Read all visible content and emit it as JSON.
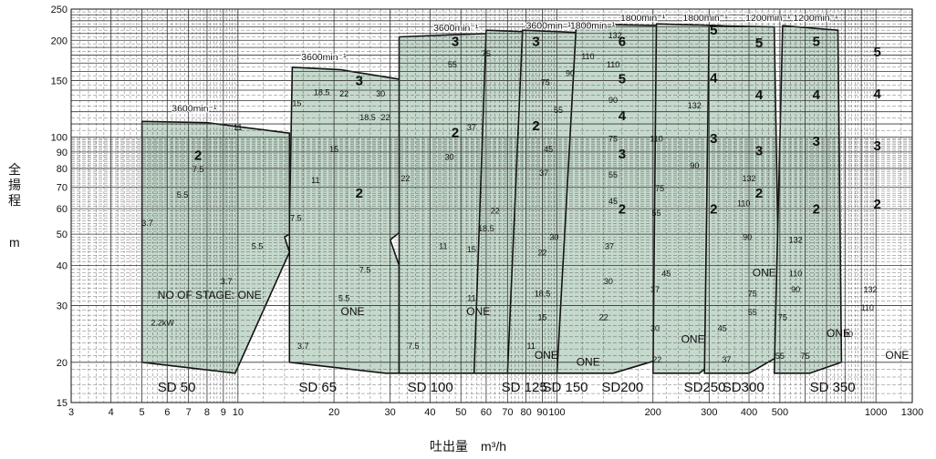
{
  "chart_data": {
    "type": "area",
    "title": "",
    "xlabel": "吐出量　m³/h",
    "ylabel": "全揚程",
    "yunit": "m",
    "x_scale": "log",
    "y_scale": "log",
    "xlim": [
      3,
      1300
    ],
    "ylim": [
      15,
      250
    ],
    "grid": true,
    "x_tick_labels": [
      {
        "v": 3,
        "t": "3"
      },
      {
        "v": 4,
        "t": "4"
      },
      {
        "v": 5,
        "t": "5"
      },
      {
        "v": 6,
        "t": "6"
      },
      {
        "v": 7,
        "t": "7"
      },
      {
        "v": 8,
        "t": "8"
      },
      {
        "v": 9,
        "t": "9"
      },
      {
        "v": 10,
        "t": "10"
      },
      {
        "v": 20,
        "t": "20"
      },
      {
        "v": 30,
        "t": "30"
      },
      {
        "v": 40,
        "t": "40"
      },
      {
        "v": 50,
        "t": "50"
      },
      {
        "v": 60,
        "t": "60"
      },
      {
        "v": 70,
        "t": "70"
      },
      {
        "v": 80,
        "t": "80"
      },
      {
        "v": 90,
        "t": "90"
      },
      {
        "v": 100,
        "t": "100"
      },
      {
        "v": 200,
        "t": "200"
      },
      {
        "v": 300,
        "t": "300"
      },
      {
        "v": 400,
        "t": "400"
      },
      {
        "v": 500,
        "t": "500"
      },
      {
        "v": 1000,
        "t": "1000"
      },
      {
        "v": 1300,
        "t": "1300"
      }
    ],
    "y_tick_labels": [
      {
        "v": 15,
        "t": "15"
      },
      {
        "v": 20,
        "t": "20"
      },
      {
        "v": 30,
        "t": "30"
      },
      {
        "v": 40,
        "t": "40"
      },
      {
        "v": 50,
        "t": "50"
      },
      {
        "v": 60,
        "t": "60"
      },
      {
        "v": 70,
        "t": "70"
      },
      {
        "v": 80,
        "t": "80"
      },
      {
        "v": 90,
        "t": "90"
      },
      {
        "v": 100,
        "t": "100"
      },
      {
        "v": 150,
        "t": "150"
      },
      {
        "v": 200,
        "t": "200"
      },
      {
        "v": 250,
        "t": "250"
      }
    ],
    "colors": {
      "region_fill": "#c5d9cc",
      "region_stroke": "#111111",
      "grid": "#333333",
      "background": "#ffffff"
    },
    "models": [
      {
        "name": "SD 50",
        "speed": "3600min⁻¹",
        "label_x": 5.6,
        "polygon": [
          [
            5,
            20
          ],
          [
            5,
            112
          ],
          [
            8,
            111
          ],
          [
            14.5,
            103
          ],
          [
            14.5,
            50
          ],
          [
            14,
            49
          ],
          [
            14.5,
            44
          ],
          [
            9.8,
            18.5
          ],
          [
            5,
            20
          ]
        ]
      },
      {
        "name": "SD 65",
        "speed": "3600min⁻¹",
        "label_x": 15.5,
        "polygon": [
          [
            14.5,
            55
          ],
          [
            14.8,
            165
          ],
          [
            21,
            162
          ],
          [
            34,
            150
          ],
          [
            34,
            53
          ],
          [
            30,
            48
          ],
          [
            32,
            40
          ],
          [
            32,
            18.5
          ],
          [
            29,
            18.5
          ],
          [
            14.5,
            20
          ]
        ]
      },
      {
        "name": "SD 100",
        "speed": "3600min⁻¹",
        "label_x": 34,
        "polygon": [
          [
            32,
            18.5
          ],
          [
            32,
            205
          ],
          [
            60,
            210
          ],
          [
            82,
            210
          ],
          [
            82,
            20
          ],
          [
            55,
            18.5
          ]
        ]
      },
      {
        "name": "SD 125",
        "speed": "3600min⁻¹",
        "label_x": 67,
        "polygon": [
          [
            55,
            18.5
          ],
          [
            60,
            215
          ],
          [
            110,
            210
          ],
          [
            112,
            19.5
          ],
          [
            70,
            18.5
          ]
        ]
      },
      {
        "name": "SD 150",
        "speed": "1800min⁻¹",
        "label_x": 90,
        "polygon": [
          [
            70,
            18.5
          ],
          [
            78,
            215
          ],
          [
            140,
            210
          ],
          [
            150,
            22
          ],
          [
            100,
            18.5
          ]
        ]
      },
      {
        "name": "SD200",
        "speed": "1800min⁻¹",
        "label_x": 138,
        "polygon": [
          [
            100,
            18.5
          ],
          [
            115,
            225
          ],
          [
            220,
            222
          ],
          [
            230,
            21
          ],
          [
            150,
            18.5
          ]
        ]
      },
      {
        "name": "SD250",
        "speed": "1800min⁻¹",
        "label_x": 250,
        "polygon": [
          [
            200,
            18.5
          ],
          [
            205,
            225
          ],
          [
            330,
            222
          ],
          [
            345,
            22
          ],
          [
            280,
            18.5
          ]
        ]
      },
      {
        "name": "SD300",
        "speed": "1200min⁻¹",
        "label_x": 330,
        "polygon": [
          [
            290,
            18.5
          ],
          [
            300,
            222
          ],
          [
            480,
            220
          ],
          [
            500,
            21
          ],
          [
            400,
            18.5
          ]
        ]
      },
      {
        "name": "SD 350",
        "speed": "1200min⁻¹",
        "label_x": 620,
        "polygon": [
          [
            480,
            18.5
          ],
          [
            510,
            222
          ],
          [
            760,
            215
          ],
          [
            780,
            20
          ],
          [
            620,
            18.5
          ]
        ]
      }
    ],
    "stage_labels": [
      {
        "t": "2",
        "x": 7.5,
        "y": 85
      },
      {
        "t": "3",
        "x": 24,
        "y": 145
      },
      {
        "t": "2",
        "x": 24,
        "y": 65
      },
      {
        "t": "3",
        "x": 48,
        "y": 192
      },
      {
        "t": "2",
        "x": 48,
        "y": 100
      },
      {
        "t": "3",
        "x": 86,
        "y": 192
      },
      {
        "t": "2",
        "x": 86,
        "y": 105
      },
      {
        "t": "6",
        "x": 160,
        "y": 192
      },
      {
        "t": "5",
        "x": 160,
        "y": 147
      },
      {
        "t": "4",
        "x": 160,
        "y": 113
      },
      {
        "t": "3",
        "x": 160,
        "y": 86
      },
      {
        "t": "2",
        "x": 160,
        "y": 58
      },
      {
        "t": "5",
        "x": 310,
        "y": 208
      },
      {
        "t": "4",
        "x": 310,
        "y": 148
      },
      {
        "t": "3",
        "x": 310,
        "y": 96
      },
      {
        "t": "2",
        "x": 310,
        "y": 58
      },
      {
        "t": "5",
        "x": 430,
        "y": 190
      },
      {
        "t": "4",
        "x": 430,
        "y": 131
      },
      {
        "t": "3",
        "x": 430,
        "y": 88
      },
      {
        "t": "2",
        "x": 430,
        "y": 65
      },
      {
        "t": "5",
        "x": 650,
        "y": 192
      },
      {
        "t": "4",
        "x": 650,
        "y": 131
      },
      {
        "t": "3",
        "x": 650,
        "y": 94
      },
      {
        "t": "2",
        "x": 650,
        "y": 58
      },
      {
        "t": "5",
        "x": 1010,
        "y": 178
      },
      {
        "t": "4",
        "x": 1010,
        "y": 132
      },
      {
        "t": "3",
        "x": 1010,
        "y": 91
      },
      {
        "t": "2",
        "x": 1010,
        "y": 60
      }
    ],
    "one_labels": [
      {
        "t": "NO OF STAGE: ONE",
        "x": 5.6,
        "y": 31.5
      },
      {
        "t": "ONE",
        "x": 21,
        "y": 28
      },
      {
        "t": "ONE",
        "x": 52,
        "y": 28
      },
      {
        "t": "ONE",
        "x": 85,
        "y": 20.5
      },
      {
        "t": "ONE",
        "x": 115,
        "y": 19.5
      },
      {
        "t": "ONE",
        "x": 245,
        "y": 23
      },
      {
        "t": "ONE",
        "x": 410,
        "y": 37
      },
      {
        "t": "ONE",
        "x": 700,
        "y": 24
      },
      {
        "t": "ONE",
        "x": 1070,
        "y": 20.5
      }
    ],
    "motor_labels": [
      {
        "t": "11",
        "x": 10,
        "y": 105
      },
      {
        "t": "7.5",
        "x": 7.5,
        "y": 78
      },
      {
        "t": "5.5",
        "x": 6.7,
        "y": 65
      },
      {
        "t": "3.7",
        "x": 5.2,
        "y": 53
      },
      {
        "t": "5.5",
        "x": 11.5,
        "y": 45
      },
      {
        "t": "3.7",
        "x": 9.2,
        "y": 35
      },
      {
        "t": "2.2kW",
        "x": 5.8,
        "y": 26
      },
      {
        "t": "15",
        "x": 15.3,
        "y": 125
      },
      {
        "t": "18.5",
        "x": 18.3,
        "y": 135
      },
      {
        "t": "22",
        "x": 21.5,
        "y": 134
      },
      {
        "t": "30",
        "x": 28,
        "y": 134
      },
      {
        "t": "15",
        "x": 20,
        "y": 90
      },
      {
        "t": "11",
        "x": 17.5,
        "y": 72
      },
      {
        "t": "18.5",
        "x": 25.5,
        "y": 113
      },
      {
        "t": "22",
        "x": 29,
        "y": 113
      },
      {
        "t": "7.5",
        "x": 15.2,
        "y": 55
      },
      {
        "t": "7.5",
        "x": 25,
        "y": 38
      },
      {
        "t": "5.5",
        "x": 21.5,
        "y": 31
      },
      {
        "t": "3.7",
        "x": 16,
        "y": 22
      },
      {
        "t": "55",
        "x": 47,
        "y": 165
      },
      {
        "t": "75",
        "x": 60,
        "y": 178
      },
      {
        "t": "37",
        "x": 54,
        "y": 105
      },
      {
        "t": "30",
        "x": 46,
        "y": 85
      },
      {
        "t": "22",
        "x": 33.5,
        "y": 73
      },
      {
        "t": "22",
        "x": 64,
        "y": 58
      },
      {
        "t": "18.5",
        "x": 60,
        "y": 51
      },
      {
        "t": "15",
        "x": 54,
        "y": 44
      },
      {
        "t": "11",
        "x": 44,
        "y": 45
      },
      {
        "t": "11",
        "x": 54,
        "y": 31
      },
      {
        "t": "7.5",
        "x": 35.5,
        "y": 22
      },
      {
        "t": "75",
        "x": 92,
        "y": 145
      },
      {
        "t": "90",
        "x": 110,
        "y": 155
      },
      {
        "t": "110",
        "x": 125,
        "y": 175
      },
      {
        "t": "55",
        "x": 101,
        "y": 119
      },
      {
        "t": "45",
        "x": 94,
        "y": 90
      },
      {
        "t": "37",
        "x": 91,
        "y": 76
      },
      {
        "t": "30",
        "x": 98,
        "y": 48
      },
      {
        "t": "22",
        "x": 90,
        "y": 43
      },
      {
        "t": "18.5",
        "x": 90,
        "y": 32
      },
      {
        "t": "15",
        "x": 90,
        "y": 27
      },
      {
        "t": "11",
        "x": 83,
        "y": 22
      },
      {
        "t": "132",
        "x": 152,
        "y": 203
      },
      {
        "t": "110",
        "x": 150,
        "y": 165
      },
      {
        "t": "90",
        "x": 150,
        "y": 128
      },
      {
        "t": "75",
        "x": 150,
        "y": 97
      },
      {
        "t": "55",
        "x": 150,
        "y": 75
      },
      {
        "t": "45",
        "x": 150,
        "y": 62
      },
      {
        "t": "37",
        "x": 146,
        "y": 45
      },
      {
        "t": "30",
        "x": 145,
        "y": 35
      },
      {
        "t": "22",
        "x": 140,
        "y": 27
      },
      {
        "t": "75",
        "x": 210,
        "y": 68
      },
      {
        "t": "55",
        "x": 205,
        "y": 57
      },
      {
        "t": "45",
        "x": 220,
        "y": 37
      },
      {
        "t": "37",
        "x": 203,
        "y": 33
      },
      {
        "t": "30",
        "x": 203,
        "y": 25
      },
      {
        "t": "22",
        "x": 206,
        "y": 20
      },
      {
        "t": "132",
        "x": 270,
        "y": 123
      },
      {
        "t": "110",
        "x": 205,
        "y": 97
      },
      {
        "t": "90",
        "x": 270,
        "y": 80
      },
      {
        "t": "132",
        "x": 400,
        "y": 73
      },
      {
        "t": "110",
        "x": 385,
        "y": 61
      },
      {
        "t": "90",
        "x": 395,
        "y": 48
      },
      {
        "t": "75",
        "x": 410,
        "y": 32
      },
      {
        "t": "55",
        "x": 410,
        "y": 28
      },
      {
        "t": "45",
        "x": 330,
        "y": 25
      },
      {
        "t": "37",
        "x": 340,
        "y": 20
      },
      {
        "t": "132",
        "x": 560,
        "y": 47
      },
      {
        "t": "110",
        "x": 560,
        "y": 37
      },
      {
        "t": "90",
        "x": 560,
        "y": 33
      },
      {
        "t": "75",
        "x": 510,
        "y": 27
      },
      {
        "t": "55",
        "x": 500,
        "y": 20.5
      },
      {
        "t": "75",
        "x": 600,
        "y": 20.5
      },
      {
        "t": "132",
        "x": 960,
        "y": 33
      },
      {
        "t": "110",
        "x": 940,
        "y": 29
      },
      {
        "t": "90",
        "x": 820,
        "y": 24
      }
    ]
  }
}
